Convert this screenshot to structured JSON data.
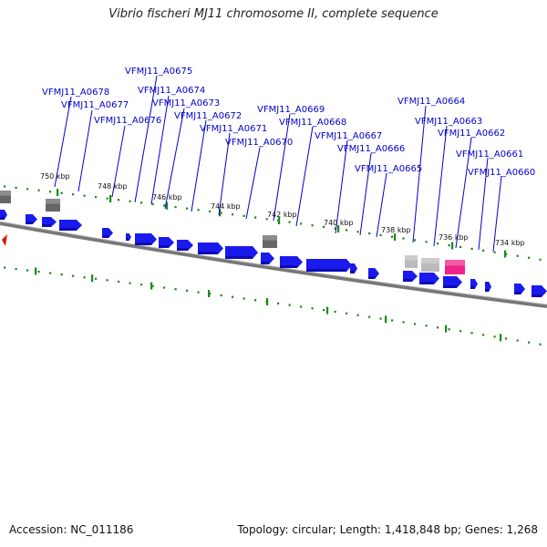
{
  "title": "Vibrio fischeri MJ11 chromosome II, complete sequence",
  "footer": {
    "accession": "Accession: NC_011186",
    "summary": "Topology: circular; Length: 1,418,848 bp; Genes: 1,268"
  },
  "colors": {
    "gene": "#1a1aee",
    "backbone": "#777777",
    "tick": "#1a8a1a",
    "label": "#0000cc",
    "highlight": "#ee2288",
    "rna_dark": "#666666",
    "rna_light": "#bbbbbb",
    "origin_marker": "#dd1111"
  },
  "scale_labels": [
    "750 kbp",
    "748 kbp",
    "746 kbp",
    "744 kbp",
    "742 kbp",
    "740 kbp",
    "738 kbp",
    "736 kbp",
    "734 kbp"
  ],
  "gene_labels": [
    "VFMJ11_A0675",
    "VFMJ11_A0678",
    "VFMJ11_A0674",
    "VFMJ11_A0677",
    "VFMJ11_A0673",
    "VFMJ11_A0676",
    "VFMJ11_A0672",
    "VFMJ11_A0671",
    "VFMJ11_A0669",
    "VFMJ11_A0670",
    "VFMJ11_A0668",
    "VFMJ11_A0667",
    "VFMJ11_A0664",
    "VFMJ11_A0666",
    "VFMJ11_A0663",
    "VFMJ11_A0665",
    "VFMJ11_A0662",
    "VFMJ11_A0661",
    "VFMJ11_A0660"
  ]
}
